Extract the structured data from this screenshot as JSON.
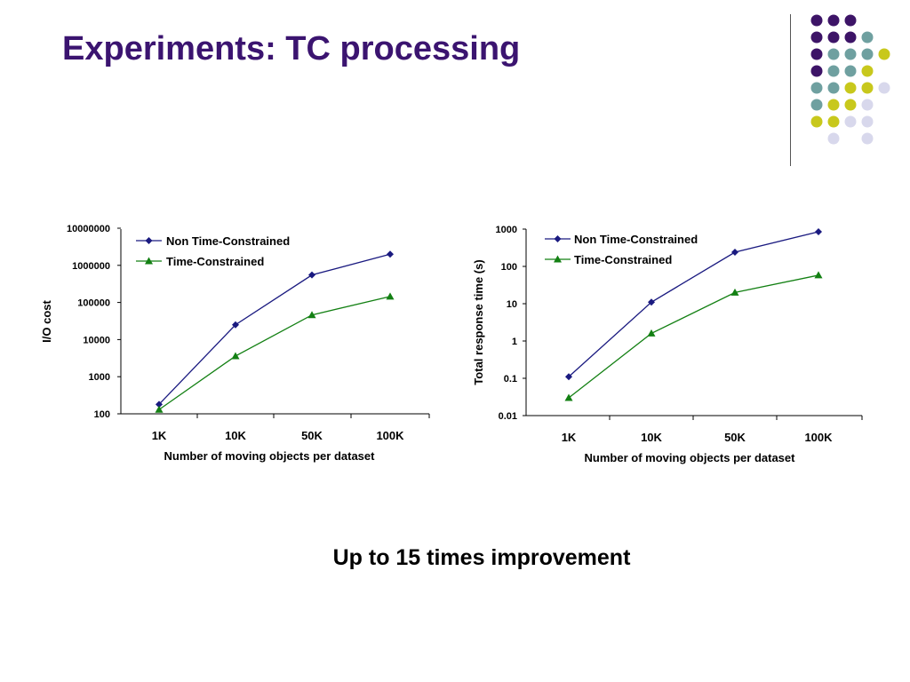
{
  "slide": {
    "title": "Experiments: TC processing",
    "caption": "Up to 15 times improvement"
  },
  "decor": {
    "colors": [
      "#3d1467",
      "#6fa0a0",
      "#c8c81c",
      "#d8d8ec"
    ],
    "dot_rows": [
      [
        "#3d1467",
        "#3d1467",
        "#3d1467",
        null,
        null
      ],
      [
        "#3d1467",
        "#3d1467",
        "#3d1467",
        "#6fa0a0",
        null
      ],
      [
        "#3d1467",
        "#6fa0a0",
        "#6fa0a0",
        "#6fa0a0",
        "#c8c81c"
      ],
      [
        "#3d1467",
        "#6fa0a0",
        "#6fa0a0",
        "#c8c81c",
        null
      ],
      [
        "#6fa0a0",
        "#6fa0a0",
        "#c8c81c",
        "#c8c81c",
        "#d8d8ec"
      ],
      [
        "#6fa0a0",
        "#c8c81c",
        "#c8c81c",
        "#d8d8ec",
        null
      ],
      [
        "#c8c81c",
        "#c8c81c",
        "#d8d8ec",
        "#d8d8ec",
        null
      ],
      [
        null,
        "#d8d8ec",
        null,
        "#d8d8ec",
        null
      ]
    ]
  },
  "chart_data": [
    {
      "type": "line",
      "title": "",
      "xlabel": "Number of moving objects per dataset",
      "ylabel": "I/O cost",
      "yscale": "log",
      "ylim": [
        100,
        10000000
      ],
      "yticks": [
        "10000000",
        "1000000",
        "100000",
        "10000",
        "1000",
        "100"
      ],
      "categories": [
        "1K",
        "10K",
        "50K",
        "100K"
      ],
      "legend": "top-left",
      "series": [
        {
          "name": "Non Time-Constrained",
          "color": "#1a1a80",
          "marker": "diamond",
          "values": [
            180,
            25000,
            550000,
            2000000
          ]
        },
        {
          "name": "Time-Constrained",
          "color": "#138013",
          "marker": "triangle",
          "values": [
            130,
            3600,
            46000,
            145000
          ]
        }
      ]
    },
    {
      "type": "line",
      "title": "",
      "xlabel": "Number of moving objects per dataset",
      "ylabel": "Total response time (s)",
      "yscale": "log",
      "ylim": [
        0.01,
        1000
      ],
      "yticks": [
        "1000",
        "100",
        "10",
        "1",
        "0.1",
        "0.01"
      ],
      "categories": [
        "1K",
        "10K",
        "50K",
        "100K"
      ],
      "legend": "top-left",
      "series": [
        {
          "name": "Non Time-Constrained",
          "color": "#1a1a80",
          "marker": "diamond",
          "values": [
            0.11,
            11,
            240,
            850
          ]
        },
        {
          "name": "Time-Constrained",
          "color": "#138013",
          "marker": "triangle",
          "values": [
            0.03,
            1.6,
            20,
            58
          ]
        }
      ]
    }
  ]
}
